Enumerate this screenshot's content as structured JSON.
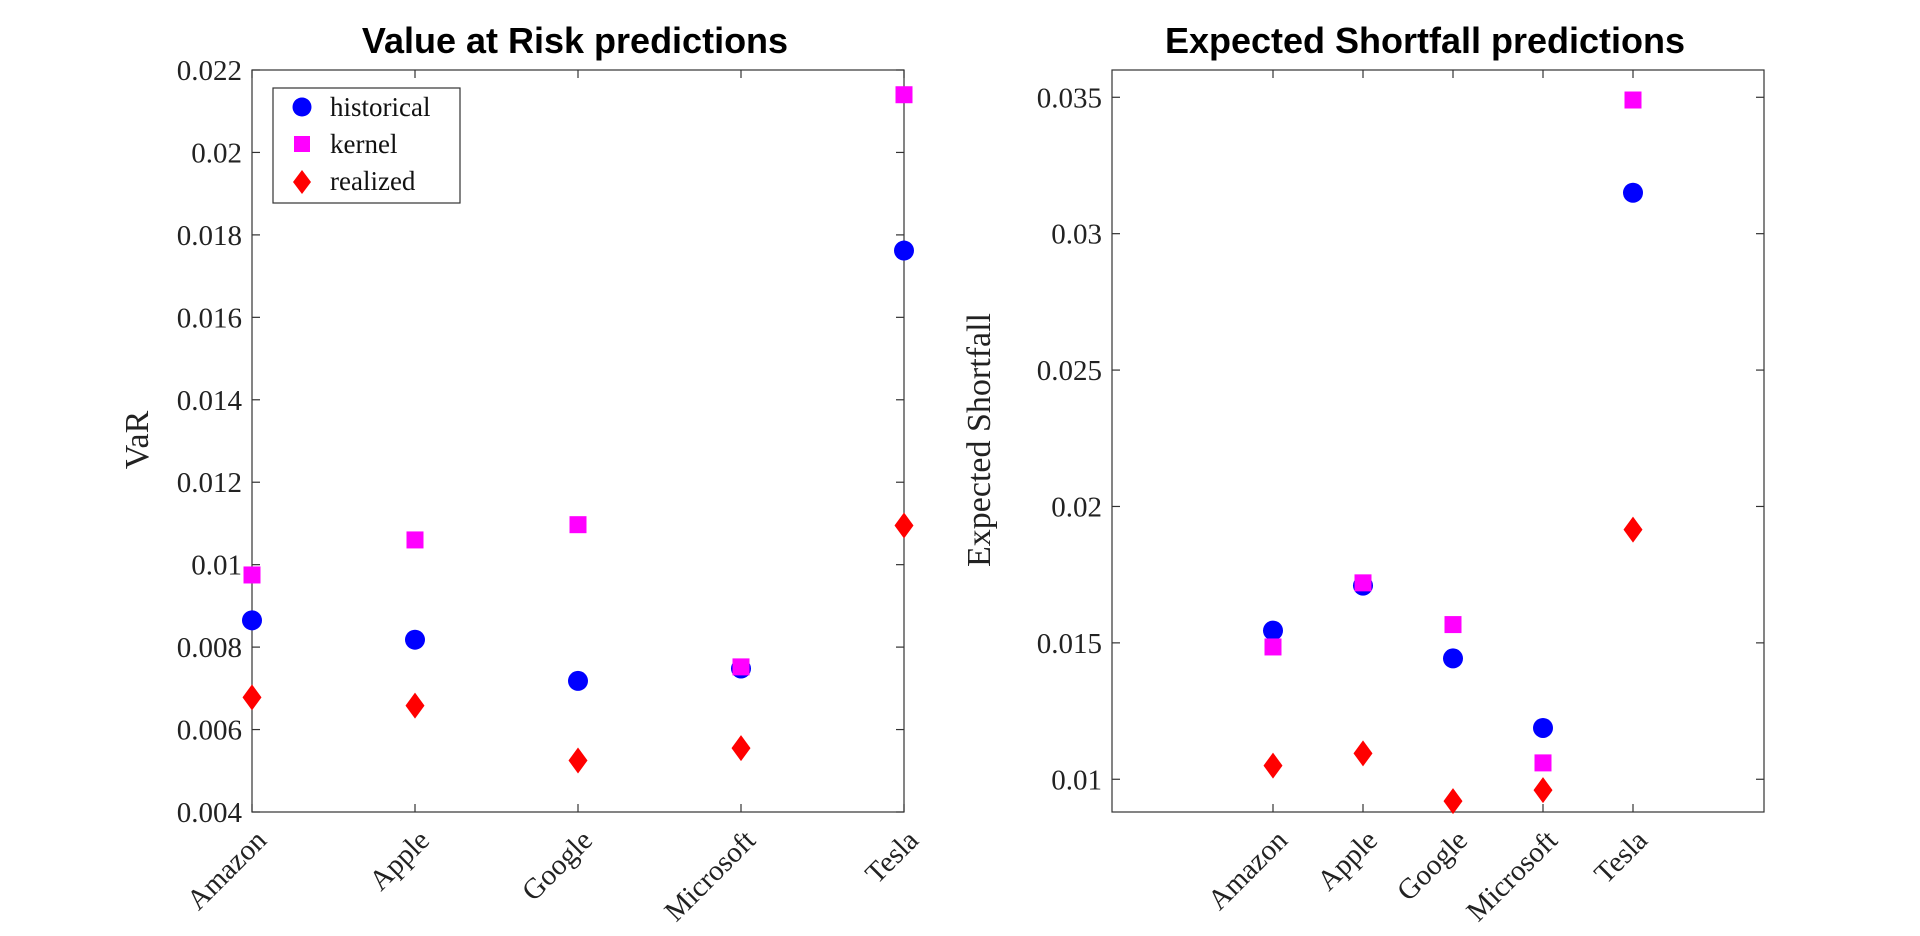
{
  "chart_data": [
    {
      "type": "scatter",
      "title": "Value at Risk predictions",
      "xlabel": "",
      "ylabel": "VaR",
      "categories": [
        "Amazon",
        "Apple",
        "Google",
        "Microsoft",
        "Tesla"
      ],
      "ylim": [
        0.004,
        0.022
      ],
      "yticks": [
        "0.004",
        "0.006",
        "0.008",
        "0.01",
        "0.012",
        "0.014",
        "0.016",
        "0.018",
        "0.02",
        "0.022"
      ],
      "legend": {
        "position": "top-left"
      },
      "series": [
        {
          "name": "historical",
          "marker": "circle",
          "color": "#0000FF",
          "values": [
            0.00865,
            0.00818,
            0.00718,
            0.00748,
            0.01762
          ]
        },
        {
          "name": "kernel",
          "marker": "square",
          "color": "#FF00FF",
          "values": [
            0.00975,
            0.0106,
            0.01097,
            0.00752,
            0.0214
          ]
        },
        {
          "name": "realized",
          "marker": "diamond",
          "color": "#FF0000",
          "values": [
            0.00678,
            0.00658,
            0.00525,
            0.00555,
            0.01095
          ]
        }
      ]
    },
    {
      "type": "scatter",
      "title": "Expected Shortfall predictions",
      "xlabel": "",
      "ylabel": "Expected Shortfall",
      "categories": [
        "Amazon",
        "Apple",
        "Google",
        "Microsoft",
        "Tesla"
      ],
      "ylim": [
        0.0088,
        0.036
      ],
      "yticks": [
        "0.01",
        "0.015",
        "0.02",
        "0.025",
        "0.03",
        "0.035"
      ],
      "series": [
        {
          "name": "historical",
          "marker": "circle",
          "color": "#0000FF",
          "values": [
            0.01545,
            0.0171,
            0.01443,
            0.01188,
            0.0315
          ]
        },
        {
          "name": "kernel",
          "marker": "square",
          "color": "#FF00FF",
          "values": [
            0.01485,
            0.0172,
            0.01567,
            0.0106,
            0.0349
          ]
        },
        {
          "name": "realized",
          "marker": "diamond",
          "color": "#FF0000",
          "values": [
            0.0105,
            0.01095,
            0.0092,
            0.0096,
            0.01915
          ]
        }
      ]
    }
  ]
}
